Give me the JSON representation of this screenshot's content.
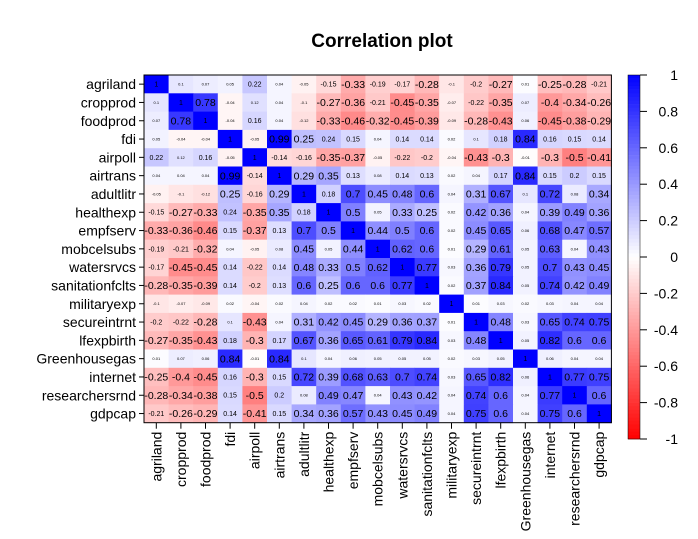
{
  "chart_data": {
    "type": "heatmap",
    "title": "Correlation plot",
    "variables": [
      "agriland",
      "cropprod",
      "foodprod",
      "fdi",
      "airpoll",
      "airtrans",
      "adultlitr",
      "healthexp",
      "empfserv",
      "mobcelsubs",
      "watersrvcs",
      "sanitationfclts",
      "militaryexp",
      "secureintrnt",
      "lfexpbirth",
      "Greenhousegas",
      "internet",
      "researchersrnd",
      "gdpcap"
    ],
    "matrix": [
      [
        1,
        0.1,
        0.07,
        0.05,
        0.22,
        0.04,
        -0.05,
        -0.15,
        -0.33,
        -0.19,
        -0.17,
        -0.28,
        -0.1,
        -0.2,
        -0.27,
        0.01,
        -0.25,
        -0.28,
        -0.21
      ],
      [
        0.1,
        1,
        0.78,
        -0.04,
        0.12,
        0.04,
        -0.1,
        -0.27,
        -0.36,
        -0.21,
        -0.45,
        -0.35,
        -0.07,
        -0.22,
        -0.35,
        0.07,
        -0.4,
        -0.34,
        -0.26
      ],
      [
        0.07,
        0.78,
        1,
        -0.04,
        0.16,
        0.04,
        -0.12,
        -0.33,
        -0.46,
        -0.32,
        -0.45,
        -0.39,
        -0.09,
        -0.28,
        -0.43,
        0.06,
        -0.45,
        -0.38,
        -0.29
      ],
      [
        0.05,
        -0.04,
        -0.04,
        1,
        -0.05,
        0.99,
        0.25,
        0.24,
        0.15,
        0.04,
        0.14,
        0.14,
        0.02,
        0.1,
        0.18,
        0.84,
        0.16,
        0.15,
        0.14
      ],
      [
        0.22,
        0.12,
        0.16,
        -0.05,
        1,
        -0.14,
        -0.16,
        -0.35,
        -0.37,
        -0.05,
        -0.22,
        -0.2,
        -0.04,
        -0.43,
        -0.3,
        -0.01,
        -0.3,
        -0.5,
        -0.41
      ],
      [
        0.04,
        0.04,
        0.04,
        0.99,
        -0.14,
        1,
        0.29,
        0.35,
        0.13,
        0.08,
        0.14,
        0.13,
        0.02,
        0.04,
        0.17,
        0.84,
        0.15,
        0.2,
        0.15
      ],
      [
        -0.05,
        -0.1,
        -0.12,
        0.25,
        -0.16,
        0.29,
        1,
        0.18,
        0.7,
        0.45,
        0.48,
        0.6,
        0.04,
        0.31,
        0.67,
        0.1,
        0.72,
        0.08,
        0.34
      ],
      [
        -0.15,
        -0.27,
        -0.33,
        0.24,
        -0.35,
        0.35,
        0.18,
        1,
        0.5,
        0.05,
        0.33,
        0.25,
        0.02,
        0.42,
        0.36,
        0.04,
        0.39,
        0.49,
        0.36
      ],
      [
        -0.33,
        -0.36,
        -0.46,
        0.15,
        -0.37,
        0.13,
        0.7,
        0.5,
        1,
        0.44,
        0.5,
        0.6,
        0.02,
        0.45,
        0.65,
        0.06,
        0.68,
        0.47,
        0.57
      ],
      [
        -0.19,
        -0.21,
        -0.32,
        0.04,
        -0.05,
        0.08,
        0.45,
        0.05,
        0.44,
        1,
        0.62,
        0.6,
        0.01,
        0.29,
        0.61,
        0.05,
        0.63,
        0.04,
        0.43
      ],
      [
        -0.17,
        -0.45,
        -0.45,
        0.14,
        -0.22,
        0.14,
        0.48,
        0.33,
        0.5,
        0.62,
        1,
        0.77,
        0.03,
        0.36,
        0.79,
        0.05,
        0.7,
        0.43,
        0.45
      ],
      [
        -0.28,
        -0.35,
        -0.39,
        0.14,
        -0.2,
        0.13,
        0.6,
        0.25,
        0.6,
        0.6,
        0.77,
        1,
        0.02,
        0.37,
        0.84,
        0.05,
        0.74,
        0.42,
        0.49
      ],
      [
        -0.1,
        -0.07,
        -0.09,
        0.02,
        -0.04,
        0.02,
        0.04,
        0.02,
        0.02,
        0.01,
        0.03,
        0.02,
        1,
        0.01,
        0.03,
        0.02,
        0.03,
        0.04,
        0.04
      ],
      [
        -0.2,
        -0.22,
        -0.28,
        0.1,
        -0.43,
        0.04,
        0.31,
        0.42,
        0.45,
        0.29,
        0.36,
        0.37,
        0.01,
        1,
        0.48,
        0.03,
        0.65,
        0.74,
        0.75
      ],
      [
        -0.27,
        -0.35,
        -0.43,
        0.18,
        -0.3,
        0.17,
        0.67,
        0.36,
        0.65,
        0.61,
        0.79,
        0.84,
        0.03,
        0.48,
        1,
        0.05,
        0.82,
        0.6,
        0.6
      ],
      [
        0.01,
        0.07,
        0.06,
        0.84,
        -0.01,
        0.84,
        0.1,
        0.04,
        0.06,
        0.05,
        0.05,
        0.05,
        0.02,
        0.03,
        0.05,
        1,
        0.06,
        0.04,
        0.04
      ],
      [
        -0.25,
        -0.4,
        -0.45,
        0.16,
        -0.3,
        0.15,
        0.72,
        0.39,
        0.68,
        0.63,
        0.7,
        0.74,
        0.03,
        0.65,
        0.82,
        0.06,
        1,
        0.77,
        0.75
      ],
      [
        -0.28,
        -0.34,
        -0.38,
        0.15,
        -0.5,
        0.2,
        0.08,
        0.49,
        0.47,
        0.04,
        0.43,
        0.42,
        0.04,
        0.74,
        0.6,
        0.04,
        0.77,
        1,
        0.6
      ],
      [
        -0.21,
        -0.26,
        -0.29,
        0.14,
        -0.41,
        0.15,
        0.34,
        0.36,
        0.57,
        0.43,
        0.45,
        0.49,
        0.04,
        0.75,
        0.6,
        0.04,
        0.75,
        0.6,
        1
      ]
    ],
    "colorbar": {
      "ticks": [
        1,
        0.8,
        0.6,
        0.4,
        0.2,
        0,
        -0.2,
        -0.4,
        -0.6,
        -0.8,
        -1
      ],
      "tick_labels": [
        "1",
        "0.8",
        "0.6",
        "0.4",
        "0.2",
        "0",
        "-0.2",
        "-0.4",
        "-0.6",
        "-0.8",
        "-1"
      ],
      "range": [
        -1,
        1
      ]
    },
    "colors": {
      "negative": "#FF0000",
      "zero": "#FFFFFF",
      "positive": "#0000FF"
    }
  }
}
